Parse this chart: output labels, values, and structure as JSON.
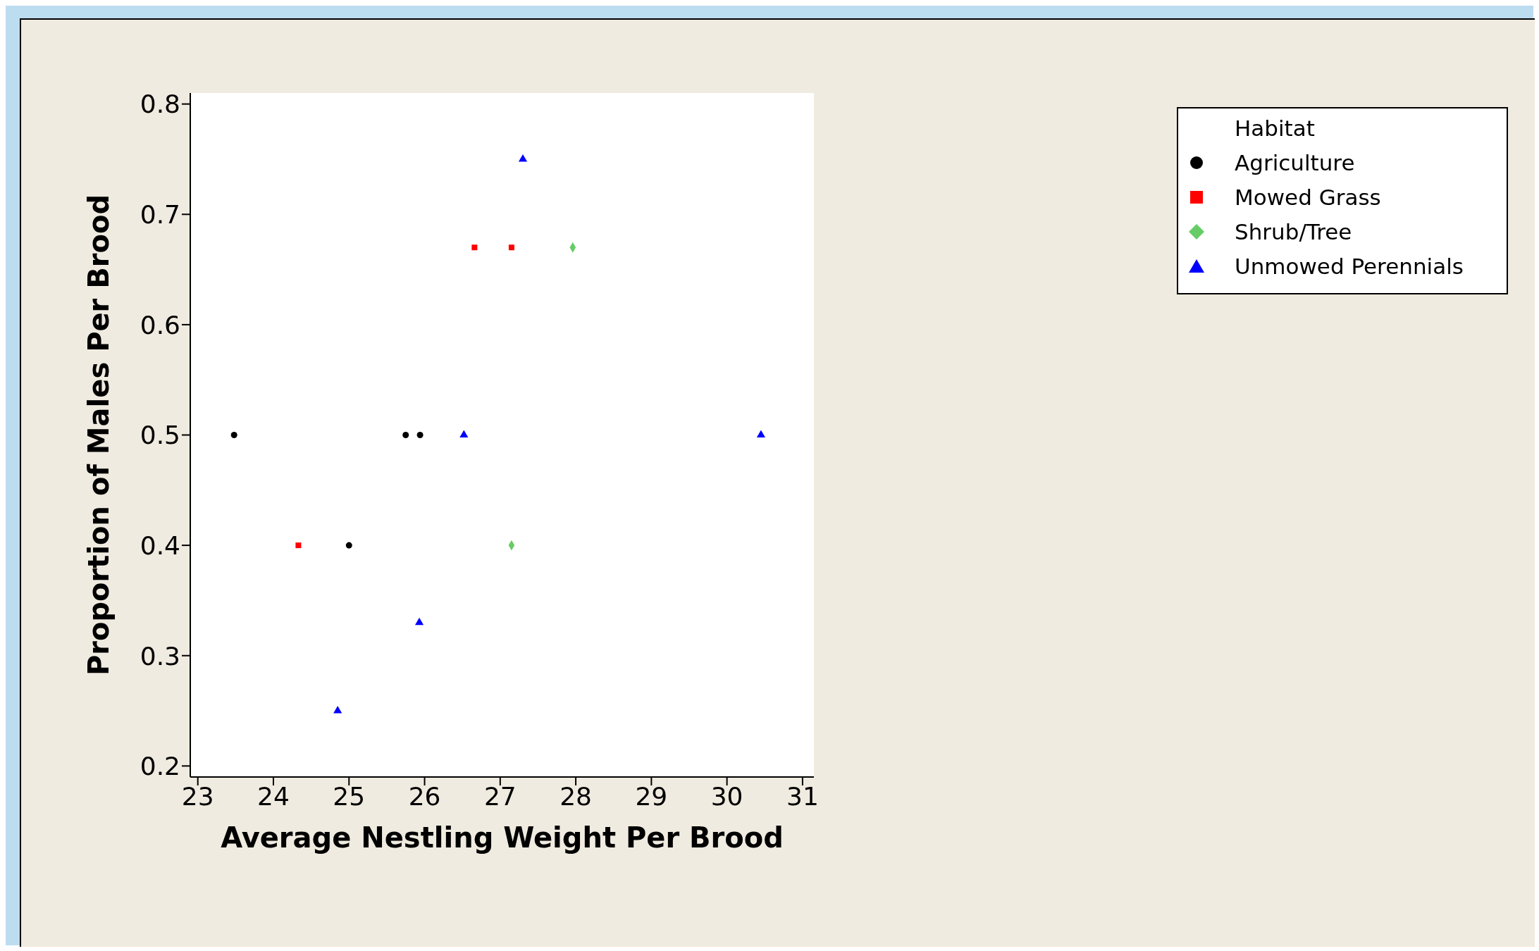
{
  "chart_data": {
    "type": "scatter",
    "xlabel": "Average Nestling Weight Per Brood",
    "ylabel": "Proportion of Males Per Brood",
    "legend_title": "Habitat",
    "legend": "top right",
    "xlim": [
      22.9,
      31.15
    ],
    "xticks": [
      23,
      24,
      25,
      26,
      27,
      28,
      29,
      30,
      31
    ],
    "ylim": [
      0.19,
      0.81
    ],
    "yticks": [
      0.2,
      0.3,
      0.4,
      0.5,
      0.6,
      0.7,
      0.8
    ],
    "grid": false,
    "series": [
      {
        "name": "Agriculture",
        "color": "#000000",
        "marker": "circle",
        "x": [
          23.48,
          25.0,
          25.75,
          25.94
        ],
        "values": [
          0.5,
          0.4,
          0.5,
          0.5
        ]
      },
      {
        "name": "Mowed Grass",
        "color": "#ff0000",
        "marker": "square",
        "x": [
          24.33,
          26.66,
          27.15
        ],
        "values": [
          0.4,
          0.67,
          0.67
        ]
      },
      {
        "name": "Shrub/Tree",
        "color": "#66cc66",
        "marker": "diamond",
        "x": [
          27.96,
          27.15
        ],
        "values": [
          0.67,
          0.4
        ]
      },
      {
        "name": "Unmowed Perennials",
        "color": "#0000ff",
        "marker": "triangle",
        "x": [
          27.3,
          26.52,
          25.93,
          24.85,
          30.45
        ],
        "values": [
          0.75,
          0.5,
          0.33,
          0.25,
          0.5
        ]
      }
    ]
  }
}
